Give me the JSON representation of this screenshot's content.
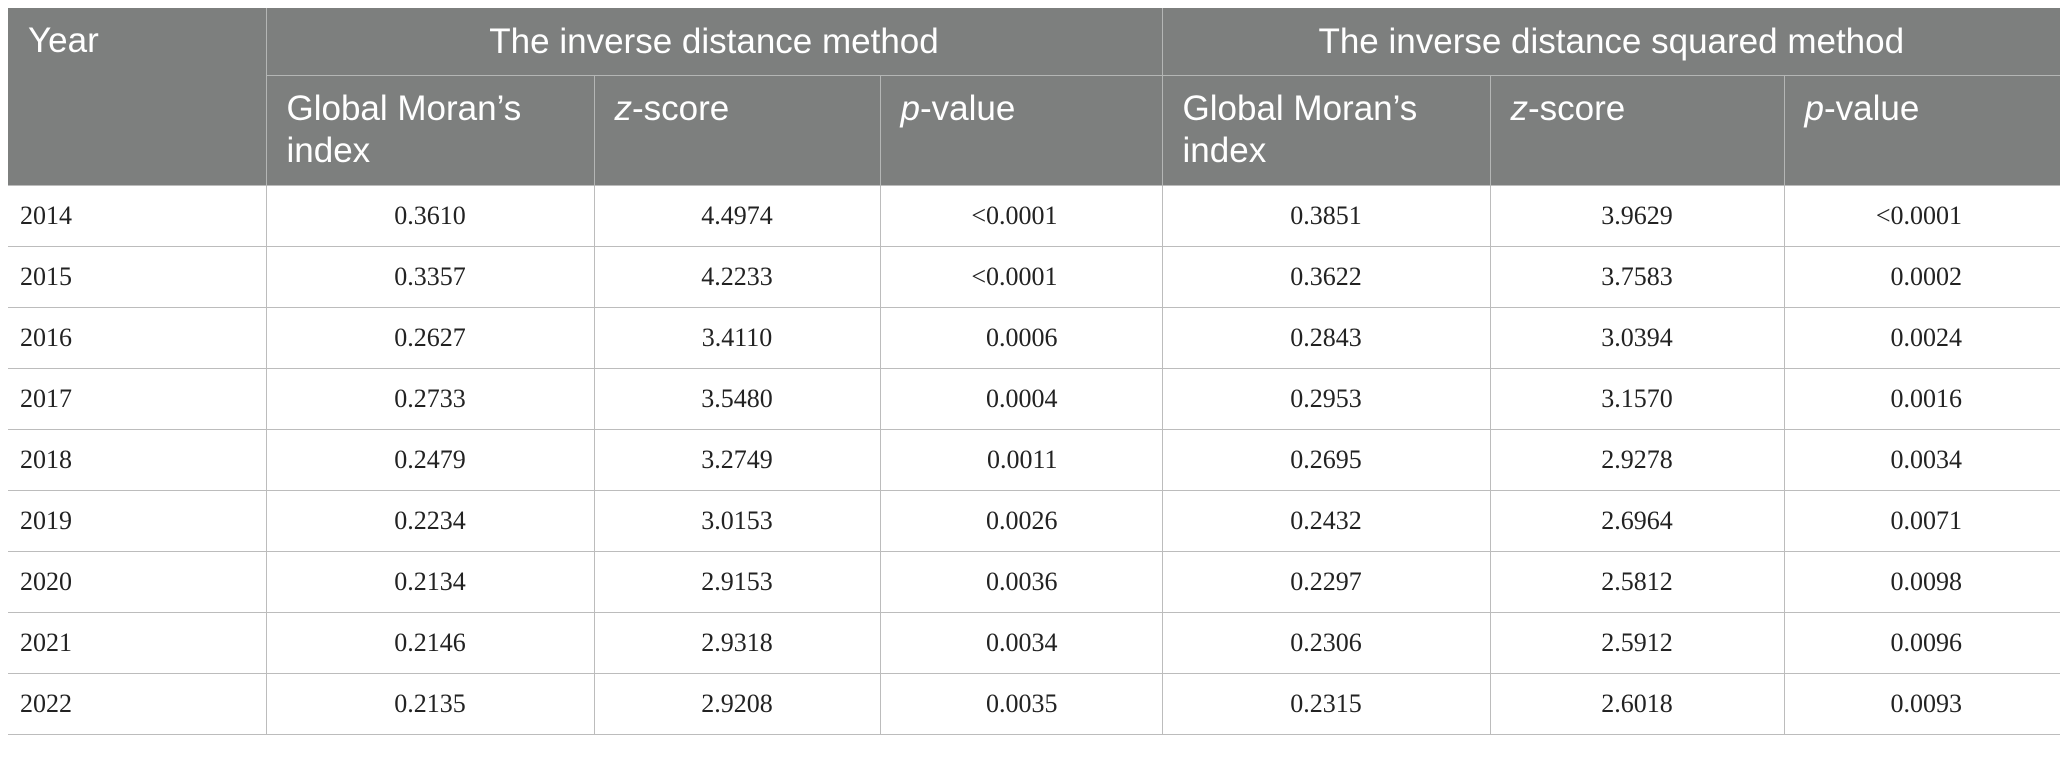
{
  "table": {
    "header": {
      "year": "Year",
      "group1": "The inverse distance method",
      "group2": "The inverse distance squared method",
      "col_global_moran": "Global Moran’s index",
      "col_z_prefix": "z",
      "col_z_suffix": "-score",
      "col_p_prefix": "p",
      "col_p_suffix": "-value"
    },
    "rows": [
      {
        "year": "2014",
        "gm1": "0.3610",
        "z1": "4.4974",
        "p1": "<0.0001",
        "gm2": "0.3851",
        "z2": "3.9629",
        "p2": "<0.0001"
      },
      {
        "year": "2015",
        "gm1": "0.3357",
        "z1": "4.2233",
        "p1": "<0.0001",
        "gm2": "0.3622",
        "z2": "3.7583",
        "p2": "0.0002"
      },
      {
        "year": "2016",
        "gm1": "0.2627",
        "z1": "3.4110",
        "p1": "0.0006",
        "gm2": "0.2843",
        "z2": "3.0394",
        "p2": "0.0024"
      },
      {
        "year": "2017",
        "gm1": "0.2733",
        "z1": "3.5480",
        "p1": "0.0004",
        "gm2": "0.2953",
        "z2": "3.1570",
        "p2": "0.0016"
      },
      {
        "year": "2018",
        "gm1": "0.2479",
        "z1": "3.2749",
        "p1": "0.0011",
        "gm2": "0.2695",
        "z2": "2.9278",
        "p2": "0.0034"
      },
      {
        "year": "2019",
        "gm1": "0.2234",
        "z1": "3.0153",
        "p1": "0.0026",
        "gm2": "0.2432",
        "z2": "2.6964",
        "p2": "0.0071"
      },
      {
        "year": "2020",
        "gm1": "0.2134",
        "z1": "2.9153",
        "p1": "0.0036",
        "gm2": "0.2297",
        "z2": "2.5812",
        "p2": "0.0098"
      },
      {
        "year": "2021",
        "gm1": "0.2146",
        "z1": "2.9318",
        "p1": "0.0034",
        "gm2": "0.2306",
        "z2": "2.5912",
        "p2": "0.0096"
      },
      {
        "year": "2022",
        "gm1": "0.2135",
        "z1": "2.9208",
        "p1": "0.0035",
        "gm2": "0.2315",
        "z2": "2.6018",
        "p2": "0.0093"
      }
    ]
  }
}
